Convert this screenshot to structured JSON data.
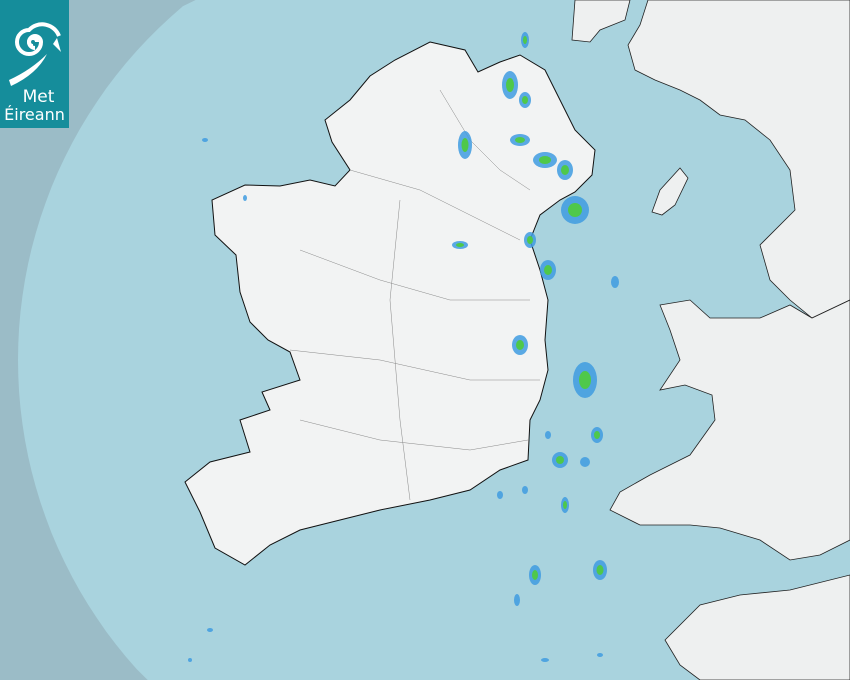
{
  "logo": {
    "line1": "Met",
    "line2": "Éireann"
  },
  "colors": {
    "outside_radar": "#9bbcc7",
    "sea": "#a9d3de",
    "land": "#f2f3f3",
    "rain_light": "#3f9be0",
    "rain_moderate": "#4fc84a",
    "logo_bg": "#158d9b"
  },
  "rain_cells": [
    [
      525,
      40,
      4,
      8
    ],
    [
      510,
      85,
      8,
      14
    ],
    [
      525,
      100,
      6,
      8
    ],
    [
      465,
      145,
      7,
      14
    ],
    [
      520,
      140,
      10,
      6
    ],
    [
      545,
      160,
      12,
      8
    ],
    [
      565,
      170,
      8,
      10
    ],
    [
      575,
      210,
      14,
      14
    ],
    [
      530,
      240,
      6,
      8
    ],
    [
      548,
      270,
      8,
      10
    ],
    [
      460,
      245,
      8,
      4
    ],
    [
      615,
      282,
      4,
      6
    ],
    [
      520,
      345,
      8,
      10
    ],
    [
      585,
      380,
      12,
      18
    ],
    [
      597,
      435,
      6,
      8
    ],
    [
      560,
      460,
      8,
      8
    ],
    [
      585,
      462,
      5,
      5
    ],
    [
      565,
      505,
      4,
      8
    ],
    [
      600,
      570,
      7,
      10
    ],
    [
      535,
      575,
      6,
      10
    ],
    [
      517,
      600,
      3,
      6
    ],
    [
      500,
      495,
      3,
      4
    ],
    [
      525,
      490,
      3,
      4
    ],
    [
      548,
      435,
      3,
      4
    ],
    [
      205,
      140,
      3,
      2
    ],
    [
      245,
      198,
      2,
      3
    ],
    [
      210,
      630,
      3,
      2
    ],
    [
      545,
      660,
      4,
      2
    ],
    [
      600,
      655,
      3,
      2
    ],
    [
      190,
      660,
      2,
      2
    ]
  ]
}
